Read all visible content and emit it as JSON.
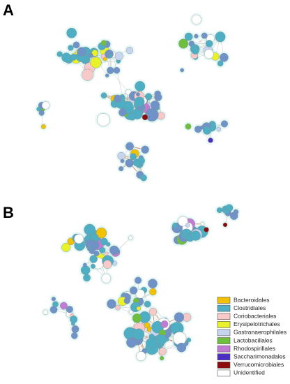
{
  "panels": [
    {
      "label": "A"
    },
    {
      "label": "B"
    }
  ],
  "legend": {
    "items": [
      {
        "name": "Bacteroidales",
        "color": "#f2c200"
      },
      {
        "name": "Clostridiales",
        "color": "#4eaec4"
      },
      {
        "name": "Coriobacteriales",
        "color": "#f7c9c9"
      },
      {
        "name": "Erysipelotrichales",
        "color": "#e9f229"
      },
      {
        "name": "Gastranaerophilales",
        "color": "#c7d5ef"
      },
      {
        "name": "Lactobacillales",
        "color": "#6fbf3f"
      },
      {
        "name": "Rhodospirillales",
        "color": "#c27bd4"
      },
      {
        "name": "Saccharimonadales",
        "color": "#4b2fc4"
      },
      {
        "name": "Verrucomicrobiales",
        "color": "#8a0c0c"
      },
      {
        "name": "Unidentified",
        "color": "#ffffff"
      }
    ]
  }
}
